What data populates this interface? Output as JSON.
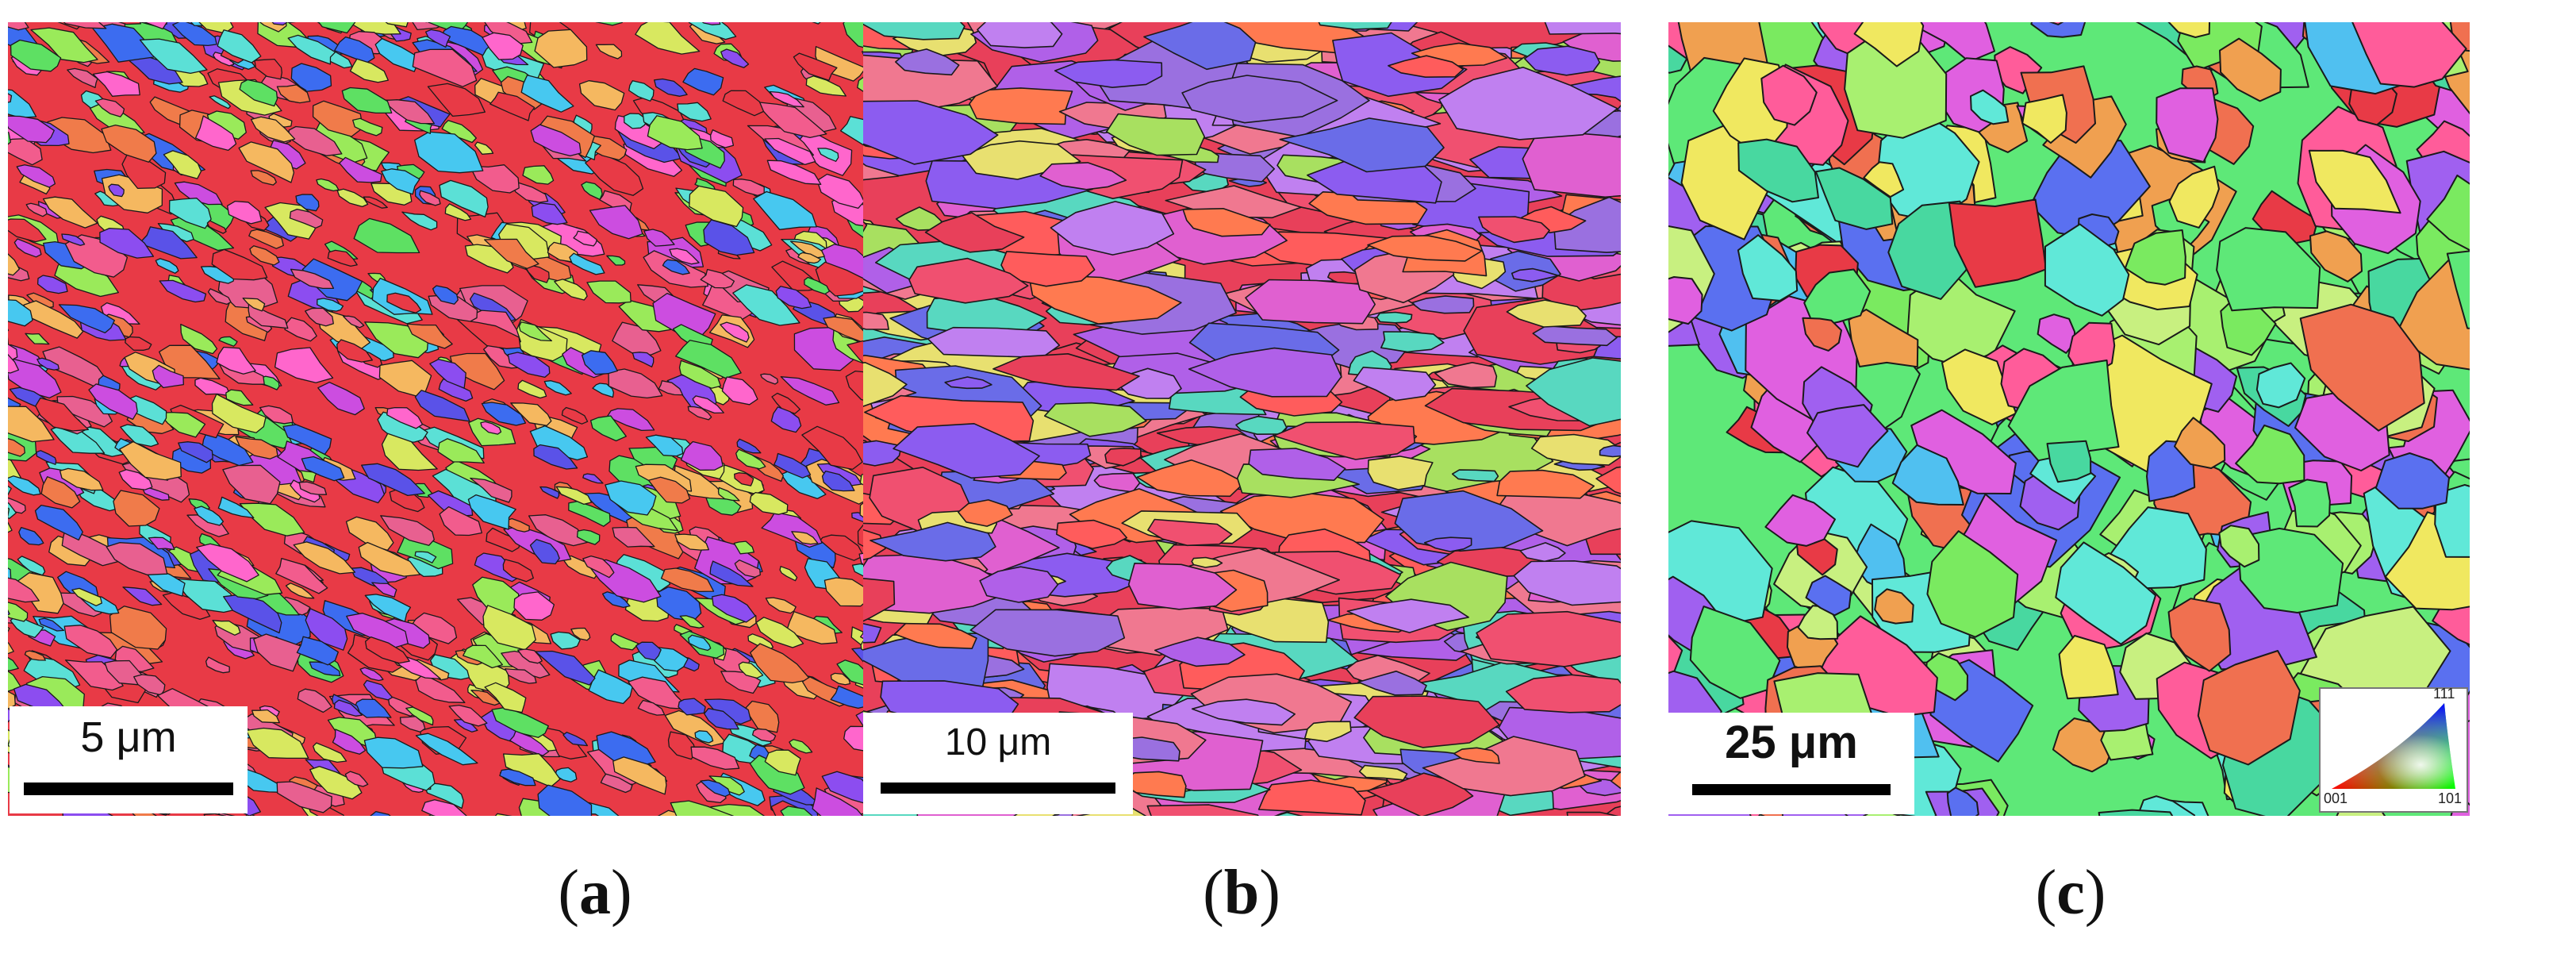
{
  "panels": [
    {
      "id": "a",
      "caption": "a",
      "scale_label": "5 μm",
      "colors": [
        "#e83a46",
        "#f25c8d",
        "#ff66cc",
        "#cc4de0",
        "#8c4df0",
        "#5a52e8",
        "#3c6cf0",
        "#47c8f0",
        "#5be0d6",
        "#5ee063",
        "#9aea5a",
        "#d8e860",
        "#f5b860",
        "#f07b4a",
        "#e86090"
      ]
    },
    {
      "id": "b",
      "caption": "b",
      "scale_label": "10 μm",
      "colors": [
        "#e8405a",
        "#f05070",
        "#ff5c5c",
        "#e060d0",
        "#b060e8",
        "#8c5cf0",
        "#6a6ce8",
        "#c080f0",
        "#f07890",
        "#a8e060",
        "#e8e070",
        "#58d8c0",
        "#ff7a50",
        "#9a70e0"
      ]
    },
    {
      "id": "c",
      "caption": "c",
      "scale_label": "25 μm",
      "colors": [
        "#5ee878",
        "#7aea60",
        "#a8f070",
        "#48d8a0",
        "#60e8d8",
        "#f0e860",
        "#f0a050",
        "#f07050",
        "#e83a46",
        "#ff5c9a",
        "#e060e0",
        "#a060f0",
        "#5a70f0",
        "#50c0f0",
        "#c8f080"
      ]
    }
  ],
  "legend": {
    "top": "111",
    "left": "001",
    "right": "101"
  }
}
